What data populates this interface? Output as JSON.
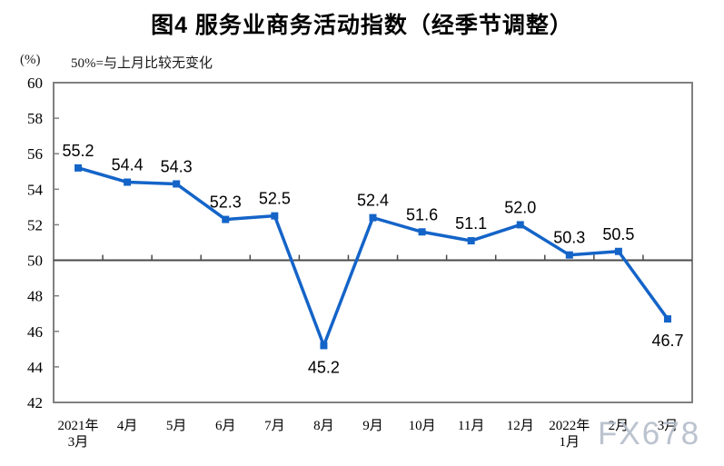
{
  "watermark": "FX678",
  "colors": {
    "line": "#1464c8",
    "marker": "#1464c8",
    "plot_border": "#808080",
    "reference_line": "#4a4a4a",
    "text": "#000000",
    "watermark": "#b4bdca",
    "background": "#ffffff"
  },
  "chart_data": {
    "type": "line",
    "title": "图4  服务业商务活动指数（经季节调整）",
    "unit_label": "(%)",
    "subtitle": "50%=与上月比较无变化",
    "series_name": "服务业商务活动指数",
    "categories": [
      [
        "2021年",
        "3月"
      ],
      [
        "4月"
      ],
      [
        "5月"
      ],
      [
        "6月"
      ],
      [
        "7月"
      ],
      [
        "8月"
      ],
      [
        "9月"
      ],
      [
        "10月"
      ],
      [
        "11月"
      ],
      [
        "12月"
      ],
      [
        "2022年",
        "1月"
      ],
      [
        "2月"
      ],
      [
        "3月"
      ]
    ],
    "values": [
      55.2,
      54.4,
      54.3,
      52.3,
      52.5,
      45.2,
      52.4,
      51.6,
      51.1,
      52.0,
      50.3,
      50.5,
      46.7
    ],
    "value_labels": [
      "55.2",
      "54.4",
      "54.3",
      "52.3",
      "52.5",
      "45.2",
      "52.4",
      "51.6",
      "51.1",
      "52.0",
      "50.3",
      "50.5",
      "46.7"
    ],
    "label_positions": [
      "above",
      "above",
      "above",
      "above",
      "above",
      "below",
      "above",
      "above",
      "above",
      "above",
      "above",
      "above",
      "below"
    ],
    "ylim": [
      42,
      60
    ],
    "ytick_step": 2,
    "yticks": [
      60,
      58,
      56,
      54,
      52,
      50,
      48,
      46,
      44,
      42
    ],
    "reference_line": 50,
    "grid": false,
    "legend": false,
    "marker": "square"
  }
}
